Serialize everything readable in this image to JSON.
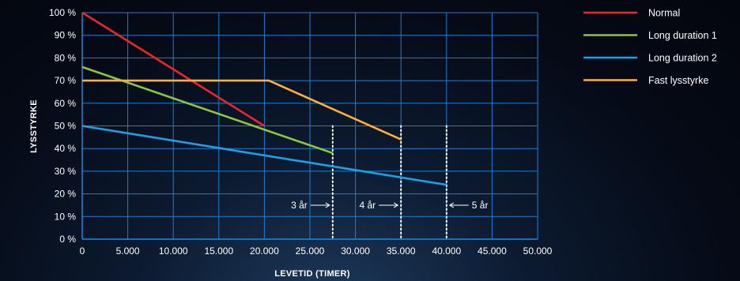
{
  "chart_data": {
    "type": "line",
    "title": "",
    "xlabel": "LEVETID (TIMER)",
    "ylabel": "LYSSTYRKE",
    "xlim": [
      0,
      50000
    ],
    "ylim": [
      0,
      100
    ],
    "x_ticks": [
      0,
      5000,
      10000,
      15000,
      20000,
      25000,
      30000,
      35000,
      40000,
      45000,
      50000
    ],
    "x_tick_labels": [
      "0",
      "5.000",
      "10.000",
      "15.000",
      "20.000",
      "25.000",
      "30.000",
      "35.000",
      "40.000",
      "45.000",
      "50.000"
    ],
    "y_ticks": [
      0,
      10,
      20,
      30,
      40,
      50,
      60,
      70,
      80,
      90,
      100
    ],
    "y_tick_labels": [
      "0 %",
      "10 %",
      "20 %",
      "30 %",
      "40 %",
      "50 %",
      "60 %",
      "70 %",
      "80 %",
      "90 %",
      "100 %"
    ],
    "grid": true,
    "legend_position": "top-right",
    "series": [
      {
        "name": "Normal",
        "color": "#e8262b",
        "points": [
          [
            0,
            100
          ],
          [
            20000,
            50
          ]
        ]
      },
      {
        "name": "Long duration 1",
        "color": "#8dc63f",
        "points": [
          [
            0,
            76
          ],
          [
            27500,
            38
          ]
        ]
      },
      {
        "name": "Long duration 2",
        "color": "#1ea0e6",
        "points": [
          [
            0,
            50
          ],
          [
            40000,
            24
          ]
        ]
      },
      {
        "name": "Fast lysstyrke",
        "color": "#fbb03b",
        "points": [
          [
            0,
            70
          ],
          [
            20500,
            70
          ],
          [
            35000,
            44
          ]
        ]
      }
    ],
    "annotations": [
      {
        "x": 27500,
        "y_top": 50,
        "label": "3 år",
        "arrow": "right"
      },
      {
        "x": 35000,
        "y_top": 50,
        "label": "4 år",
        "arrow": "right"
      },
      {
        "x": 40000,
        "y_top": 50,
        "label": "5 år",
        "arrow": "left"
      }
    ],
    "annotation_label_y": 15
  }
}
